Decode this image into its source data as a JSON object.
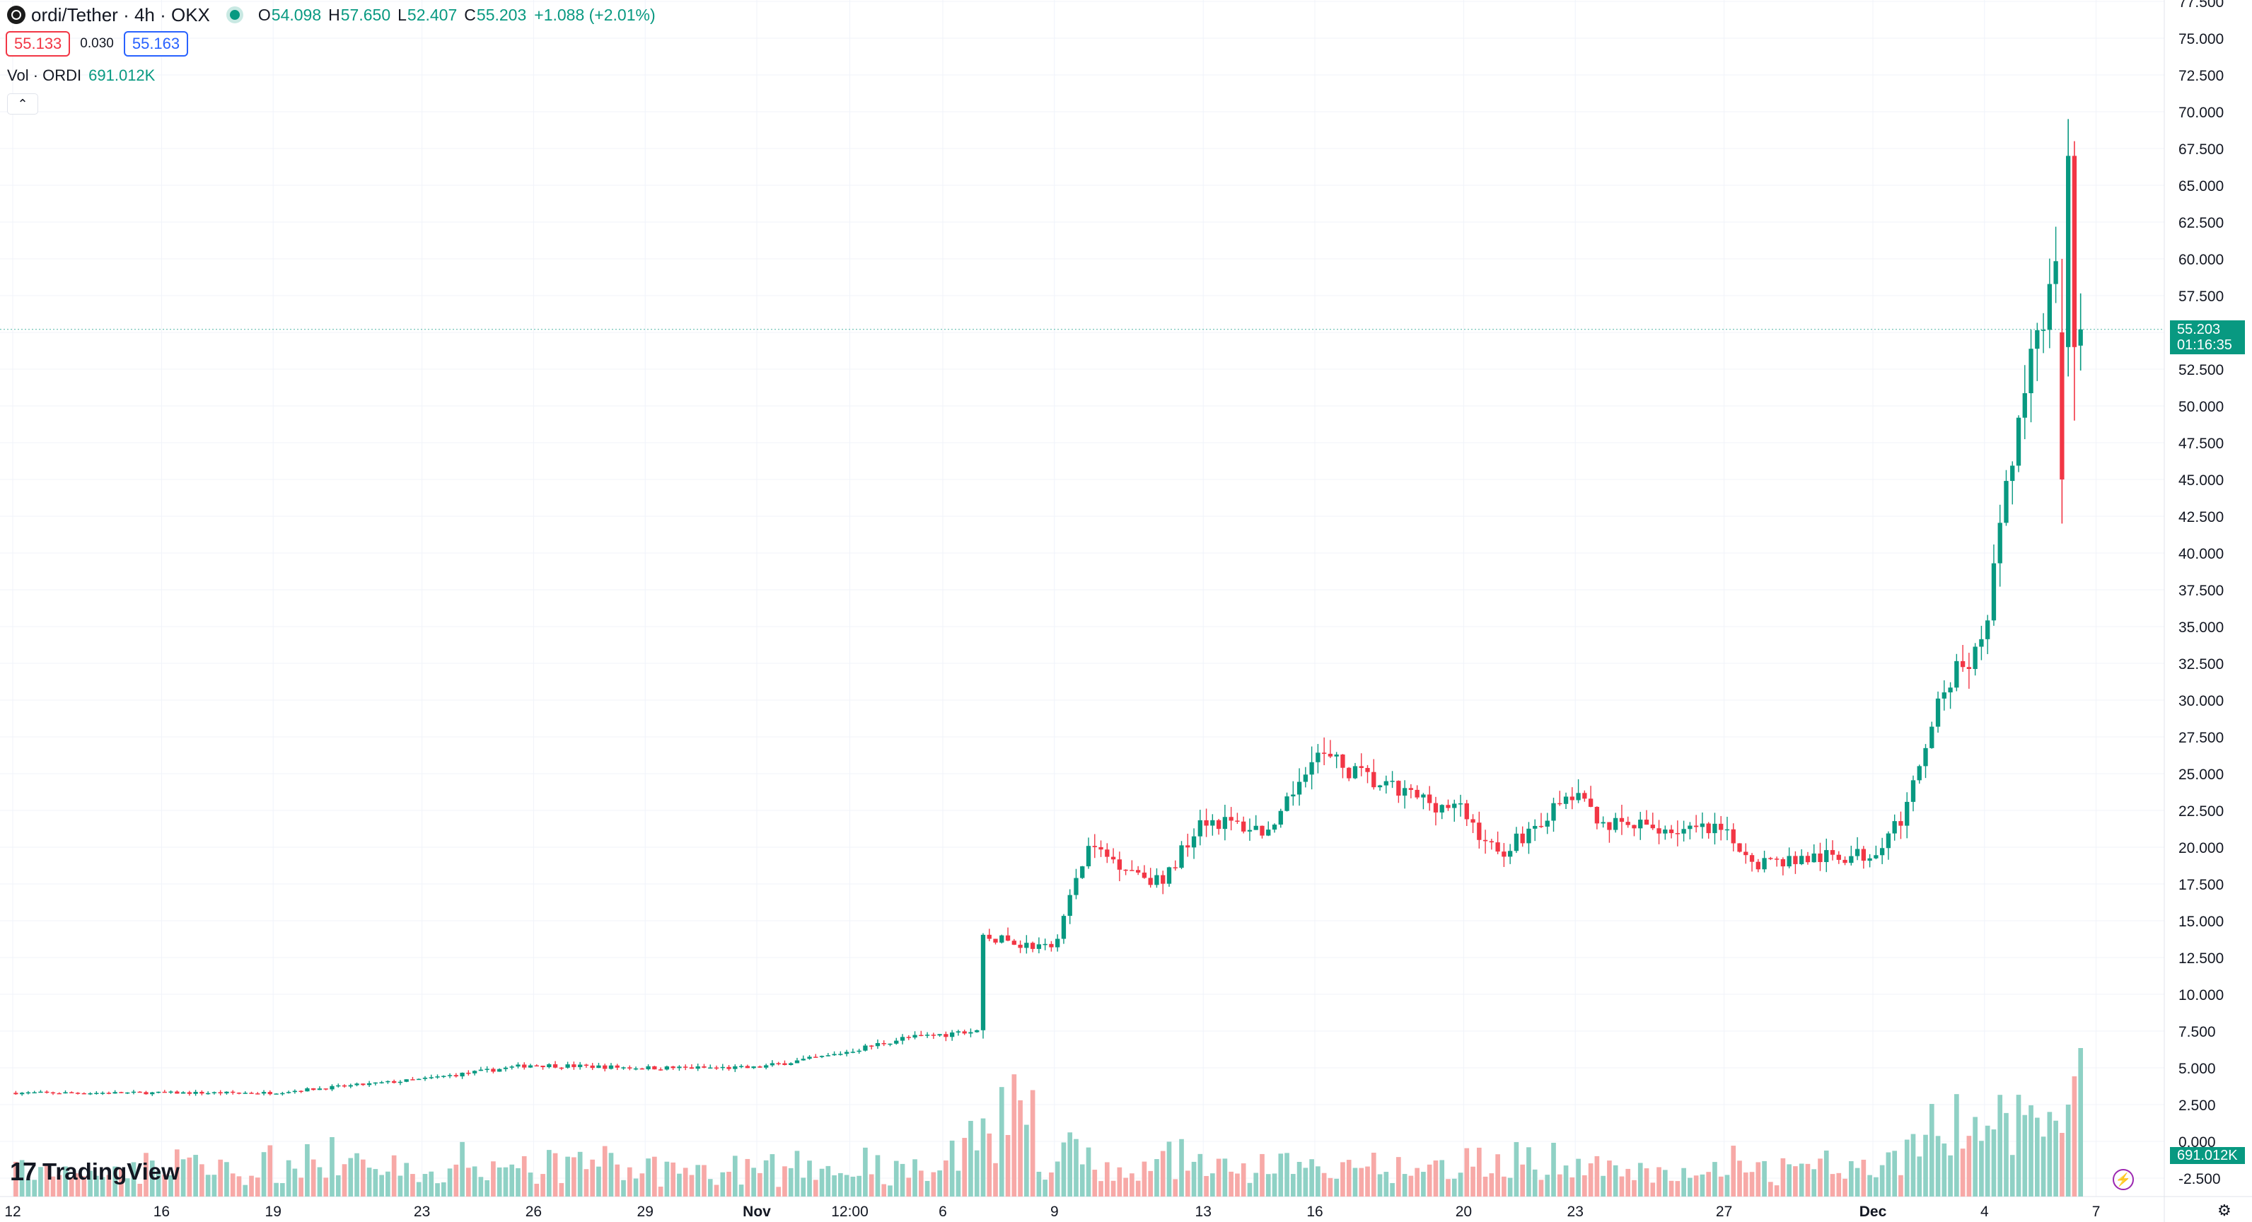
{
  "header": {
    "symbol_title": "ordi/Tether · 4h · OKX",
    "symbol_logo_icon": "ordi-logo-icon",
    "market_status_icon": "market-open-dot-icon",
    "ohlc": {
      "o_label": "O",
      "o_value": "54.098",
      "h_label": "H",
      "h_value": "57.650",
      "l_label": "L",
      "l_value": "52.407",
      "c_label": "C",
      "c_value": "55.203",
      "change": "+1.088 (+2.01%)"
    },
    "sell_price": "55.133",
    "spread": "0.030",
    "buy_price": "55.163",
    "volume_label": "Vol · ORDI",
    "volume_value": "691.012K",
    "collapse_icon": "chevron-up-icon"
  },
  "price_tag": {
    "price": "55.203",
    "countdown": "01:16:35"
  },
  "volume_tag": "691.012K",
  "branding": {
    "mark": "17",
    "name": "TradingView"
  },
  "colors": {
    "up": "#089981",
    "down": "#f23645",
    "up_volume": "#8fd1c5",
    "down_volume": "#f7a9a7",
    "grid": "#f0f3fa"
  },
  "chart_data": {
    "type": "candlestick",
    "symbol": "ordi/Tether",
    "interval": "4h",
    "exchange": "OKX",
    "y_ticks": [
      "77.500",
      "75.000",
      "72.500",
      "70.000",
      "67.500",
      "65.000",
      "62.500",
      "60.000",
      "57.500",
      "55.000",
      "52.500",
      "50.000",
      "47.500",
      "45.000",
      "42.500",
      "40.000",
      "37.500",
      "35.000",
      "32.500",
      "30.000",
      "27.500",
      "25.000",
      "22.500",
      "20.000",
      "17.500",
      "15.000",
      "12.500",
      "10.000",
      "7.500",
      "5.000",
      "2.500",
      "0.000",
      "-2.500"
    ],
    "ylim": [
      -2.5,
      77.5
    ],
    "x_ticks": [
      "12",
      "16",
      "19",
      "23",
      "26",
      "29",
      "Nov",
      "12:00",
      "6",
      "9",
      "13",
      "16",
      "20",
      "23",
      "27",
      "Dec",
      "4",
      "7"
    ],
    "current_price": 55.203,
    "trend_anchors": [
      {
        "x": "Oct 12",
        "price": 3.3
      },
      {
        "x": "Oct 19",
        "price": 3.3
      },
      {
        "x": "Oct 23",
        "price": 4.2
      },
      {
        "x": "Oct 26",
        "price": 5.2
      },
      {
        "x": "Oct 29",
        "price": 5.0
      },
      {
        "x": "Nov 1",
        "price": 5.0
      },
      {
        "x": "Nov 3",
        "price": 5.8
      },
      {
        "x": "Nov 5",
        "price": 7.0
      },
      {
        "x": "Nov 7",
        "price": 7.5
      },
      {
        "x": "Nov 7",
        "price": 14.0
      },
      {
        "x": "Nov 9",
        "price": 13.0
      },
      {
        "x": "Nov 10",
        "price": 20.0
      },
      {
        "x": "Nov 12",
        "price": 17.5
      },
      {
        "x": "Nov 13",
        "price": 22.0
      },
      {
        "x": "Nov 15",
        "price": 21.0
      },
      {
        "x": "Nov 16",
        "price": 26.5
      },
      {
        "x": "Nov 18",
        "price": 24.0
      },
      {
        "x": "Nov 20",
        "price": 22.5
      },
      {
        "x": "Nov 21",
        "price": 19.5
      },
      {
        "x": "Nov 23",
        "price": 23.5
      },
      {
        "x": "Nov 24",
        "price": 21.5
      },
      {
        "x": "Nov 27",
        "price": 21.0
      },
      {
        "x": "Nov 28",
        "price": 19.0
      },
      {
        "x": "Dec 1",
        "price": 19.5
      },
      {
        "x": "Dec 2",
        "price": 22.5
      },
      {
        "x": "Dec 3",
        "price": 31.0
      },
      {
        "x": "Dec 4",
        "price": 33.5
      },
      {
        "x": "Dec 5",
        "price": 49.0
      },
      {
        "x": "Dec 6",
        "price": 60.0
      },
      {
        "x": "Dec 6",
        "price": 47.0
      },
      {
        "x": "Dec 7",
        "price": 55.2
      }
    ],
    "notable_candles": [
      {
        "x": "Dec 6",
        "open": 55.0,
        "high": 60.0,
        "low": 42.0,
        "close": 45.0
      },
      {
        "x": "Dec 6",
        "open": 54.0,
        "high": 69.5,
        "low": 52.0,
        "close": 67.0
      },
      {
        "x": "Dec 6",
        "open": 67.0,
        "high": 68.0,
        "low": 49.0,
        "close": 54.0
      },
      {
        "x": "Dec 7",
        "open": 54.098,
        "high": 57.65,
        "low": 52.407,
        "close": 55.203
      }
    ],
    "volume_unit": "ORDI",
    "last_volume": "691.012K"
  }
}
